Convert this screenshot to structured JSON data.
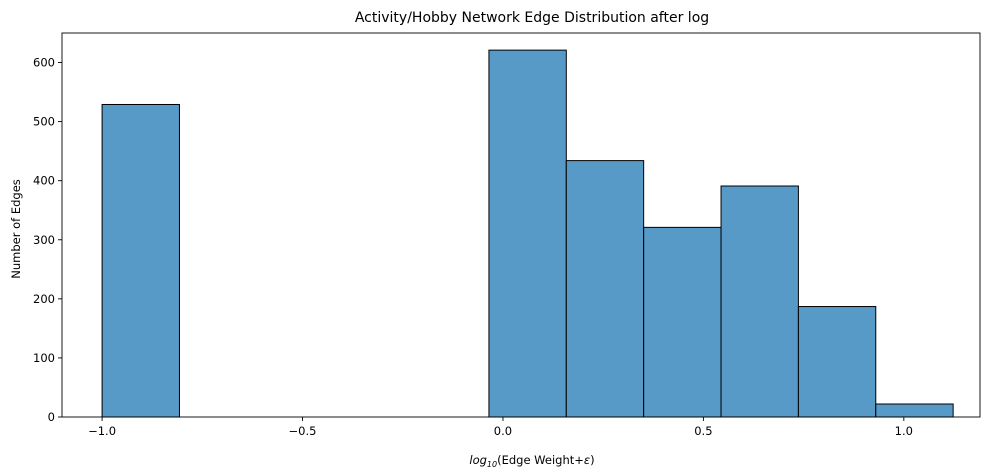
{
  "chart_data": {
    "type": "bar",
    "title": "Activity/Hobby Network Edge Distribution after log",
    "xlabel": "log10(Edge Weight+ε)",
    "xlabel_parts": {
      "log": "log",
      "sub": "10",
      "rest": "(Edge Weight+",
      "eps": "ε",
      "close": ")"
    },
    "ylabel": "Number of Edges",
    "xlim": [
      -1.1,
      1.19
    ],
    "ylim": [
      0,
      650
    ],
    "grid": false,
    "bins": [
      {
        "x0": -1.0,
        "x1": -0.807,
        "value": 529
      },
      {
        "x0": -0.807,
        "x1": -0.614,
        "value": 0
      },
      {
        "x0": -0.614,
        "x1": -0.421,
        "value": 0
      },
      {
        "x0": -0.421,
        "x1": -0.228,
        "value": 0
      },
      {
        "x0": -0.228,
        "x1": -0.035,
        "value": 0
      },
      {
        "x0": -0.035,
        "x1": 0.158,
        "value": 621
      },
      {
        "x0": 0.158,
        "x1": 0.351,
        "value": 434
      },
      {
        "x0": 0.351,
        "x1": 0.544,
        "value": 321
      },
      {
        "x0": 0.544,
        "x1": 0.737,
        "value": 391
      },
      {
        "x0": 0.737,
        "x1": 0.93,
        "value": 187
      },
      {
        "x0": 0.93,
        "x1": 1.123,
        "value": 22
      }
    ],
    "xticks": [
      {
        "value": -1.0,
        "label": "−1.0"
      },
      {
        "value": -0.5,
        "label": "−0.5"
      },
      {
        "value": 0.0,
        "label": "0.0"
      },
      {
        "value": 0.5,
        "label": "0.5"
      },
      {
        "value": 1.0,
        "label": "1.0"
      }
    ],
    "yticks": [
      {
        "value": 0,
        "label": "0"
      },
      {
        "value": 100,
        "label": "100"
      },
      {
        "value": 200,
        "label": "200"
      },
      {
        "value": 300,
        "label": "300"
      },
      {
        "value": 400,
        "label": "400"
      },
      {
        "value": 500,
        "label": "500"
      },
      {
        "value": 600,
        "label": "600"
      }
    ],
    "colors": {
      "bar_fill": "#5799c7",
      "bar_edge": "#000000"
    }
  }
}
